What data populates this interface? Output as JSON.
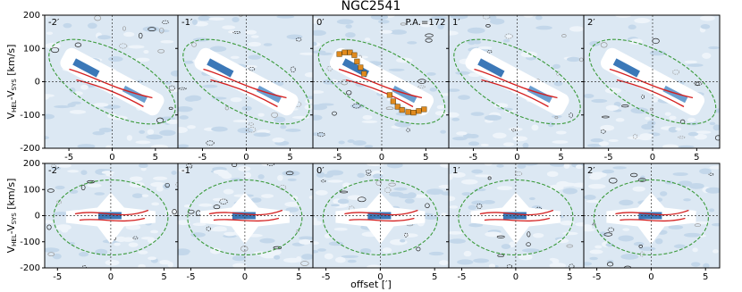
{
  "chart_data": {
    "type": "pv",
    "title": "NGC2541",
    "xlabel": "offset [′]",
    "ylabel": [
      "V",
      "HEL",
      "-V",
      "SYS",
      " [km/s]"
    ],
    "rows": [
      {
        "panels": [
          "-2′",
          "-1′",
          "0′",
          "1′",
          "2′"
        ],
        "xlim": [
          -7.8,
          7.6
        ],
        "ylim": [
          -200,
          200
        ],
        "xticks": [
          -5,
          0,
          5
        ],
        "yticks": [
          -200,
          -100,
          0,
          100,
          200
        ]
      },
      {
        "panels": [
          "-2′",
          "-1′",
          "0′",
          "1′",
          "2′"
        ],
        "xlim": [
          -6.2,
          6.3
        ],
        "ylim": [
          -200,
          200
        ],
        "xticks": [
          -5,
          0,
          5
        ],
        "yticks": [
          -200,
          -100,
          0,
          100,
          200
        ]
      }
    ],
    "annotation": "P.A.=172",
    "model": {
      "color": "#e08a1e",
      "x": [
        -4.8,
        -4.2,
        -3.6,
        -3.1,
        -2.8,
        -2.4,
        -2.0,
        0.9,
        1.3,
        1.8,
        2.3,
        3.0,
        3.6,
        4.2,
        4.8
      ],
      "values": [
        83,
        88,
        88,
        80,
        61,
        43,
        24,
        -40,
        -59,
        -75,
        -85,
        -91,
        -93,
        -88,
        -83
      ]
    }
  }
}
